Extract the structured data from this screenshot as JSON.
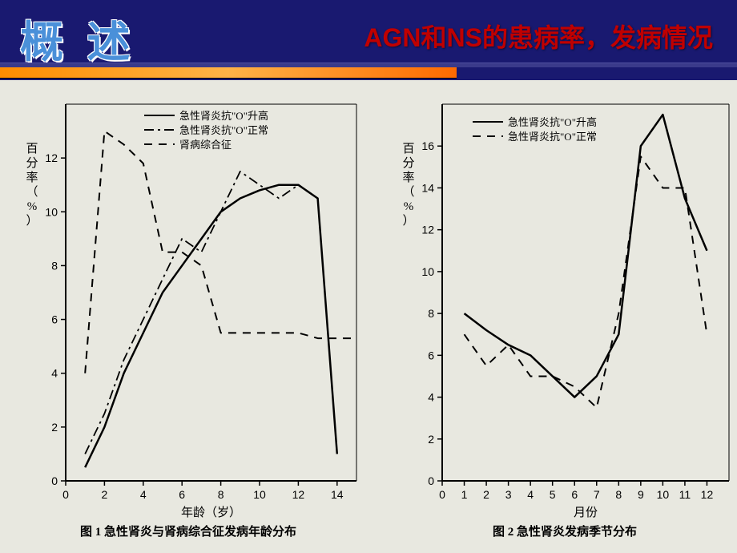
{
  "header": {
    "title_cn": "概 述",
    "subtitle": "AGN和NS的患病率，发病情况"
  },
  "chart1": {
    "type": "line",
    "caption": "图 1  急性肾炎与肾病综合征发病年龄分布",
    "y_axis_label": "百分率（%）",
    "x_axis_label": "年龄（岁）",
    "xlim": [
      0,
      15
    ],
    "ylim": [
      0,
      14
    ],
    "x_ticks": [
      0,
      2,
      4,
      6,
      8,
      10,
      12,
      14
    ],
    "y_ticks": [
      0,
      2,
      4,
      6,
      8,
      10,
      12
    ],
    "axis_color": "#000000",
    "line_color": "#000000",
    "background_color": "#e8e8e0",
    "legend_items": [
      {
        "label": "急性肾炎抗\"O\"升高",
        "dash": "solid"
      },
      {
        "label": "急性肾炎抗\"O\"正常",
        "dash": "dashdot"
      },
      {
        "label": "肾病综合征",
        "dash": "dashed"
      }
    ],
    "series": [
      {
        "name": "急性肾炎抗O升高",
        "dash": "solid",
        "width": 2.5,
        "x": [
          1,
          2,
          3,
          4,
          5,
          6,
          7,
          8,
          9,
          10,
          11,
          12,
          13,
          14
        ],
        "y": [
          0.5,
          2,
          4,
          5.5,
          7,
          8,
          9,
          10,
          10.5,
          10.8,
          11,
          11,
          10.5,
          1
        ]
      },
      {
        "name": "急性肾炎抗O正常",
        "dash": "dashdot",
        "width": 1.8,
        "x": [
          1,
          2,
          3,
          4,
          5,
          6,
          7,
          8,
          9,
          10,
          11,
          12
        ],
        "y": [
          1,
          2.5,
          4.5,
          6,
          7.5,
          9,
          8.5,
          10,
          11.5,
          11,
          10.5,
          11
        ]
      },
      {
        "name": "肾病综合征",
        "dash": "dashed",
        "width": 2,
        "x": [
          1,
          2,
          3,
          4,
          5,
          6,
          7,
          8,
          9,
          10,
          11,
          12,
          13,
          14,
          15
        ],
        "y": [
          4,
          13,
          12.5,
          11.8,
          8.5,
          8.5,
          8,
          5.5,
          5.5,
          5.5,
          5.5,
          5.5,
          5.3,
          5.3,
          5.3
        ]
      }
    ]
  },
  "chart2": {
    "type": "line",
    "caption": "图 2  急性肾炎发病季节分布",
    "y_axis_label": "百分率（%）",
    "x_axis_label": "月份",
    "xlim": [
      0,
      13
    ],
    "ylim": [
      0,
      18
    ],
    "x_ticks": [
      0,
      1,
      2,
      3,
      4,
      5,
      6,
      7,
      8,
      9,
      10,
      11,
      12
    ],
    "y_ticks": [
      0,
      2,
      4,
      6,
      8,
      10,
      12,
      14,
      16
    ],
    "axis_color": "#000000",
    "line_color": "#000000",
    "background_color": "#e8e8e0",
    "legend_items": [
      {
        "label": "急性肾炎抗\"O\"升高",
        "dash": "solid"
      },
      {
        "label": "急性肾炎抗\"O\"正常",
        "dash": "dashed"
      }
    ],
    "series": [
      {
        "name": "急性肾炎抗O升高",
        "dash": "solid",
        "width": 2.5,
        "x": [
          1,
          2,
          3,
          4,
          5,
          6,
          7,
          8,
          9,
          10,
          11,
          12
        ],
        "y": [
          8,
          7.2,
          6.5,
          6,
          5,
          4,
          5,
          7,
          16,
          17.5,
          13.5,
          11
        ]
      },
      {
        "name": "急性肾炎抗O正常",
        "dash": "dashed",
        "width": 2,
        "x": [
          1,
          2,
          3,
          4,
          5,
          6,
          7,
          8,
          9,
          10,
          11,
          12
        ],
        "y": [
          7,
          5.5,
          6.5,
          5,
          5,
          4.5,
          3.5,
          8,
          15.5,
          14,
          14,
          7
        ]
      }
    ]
  }
}
